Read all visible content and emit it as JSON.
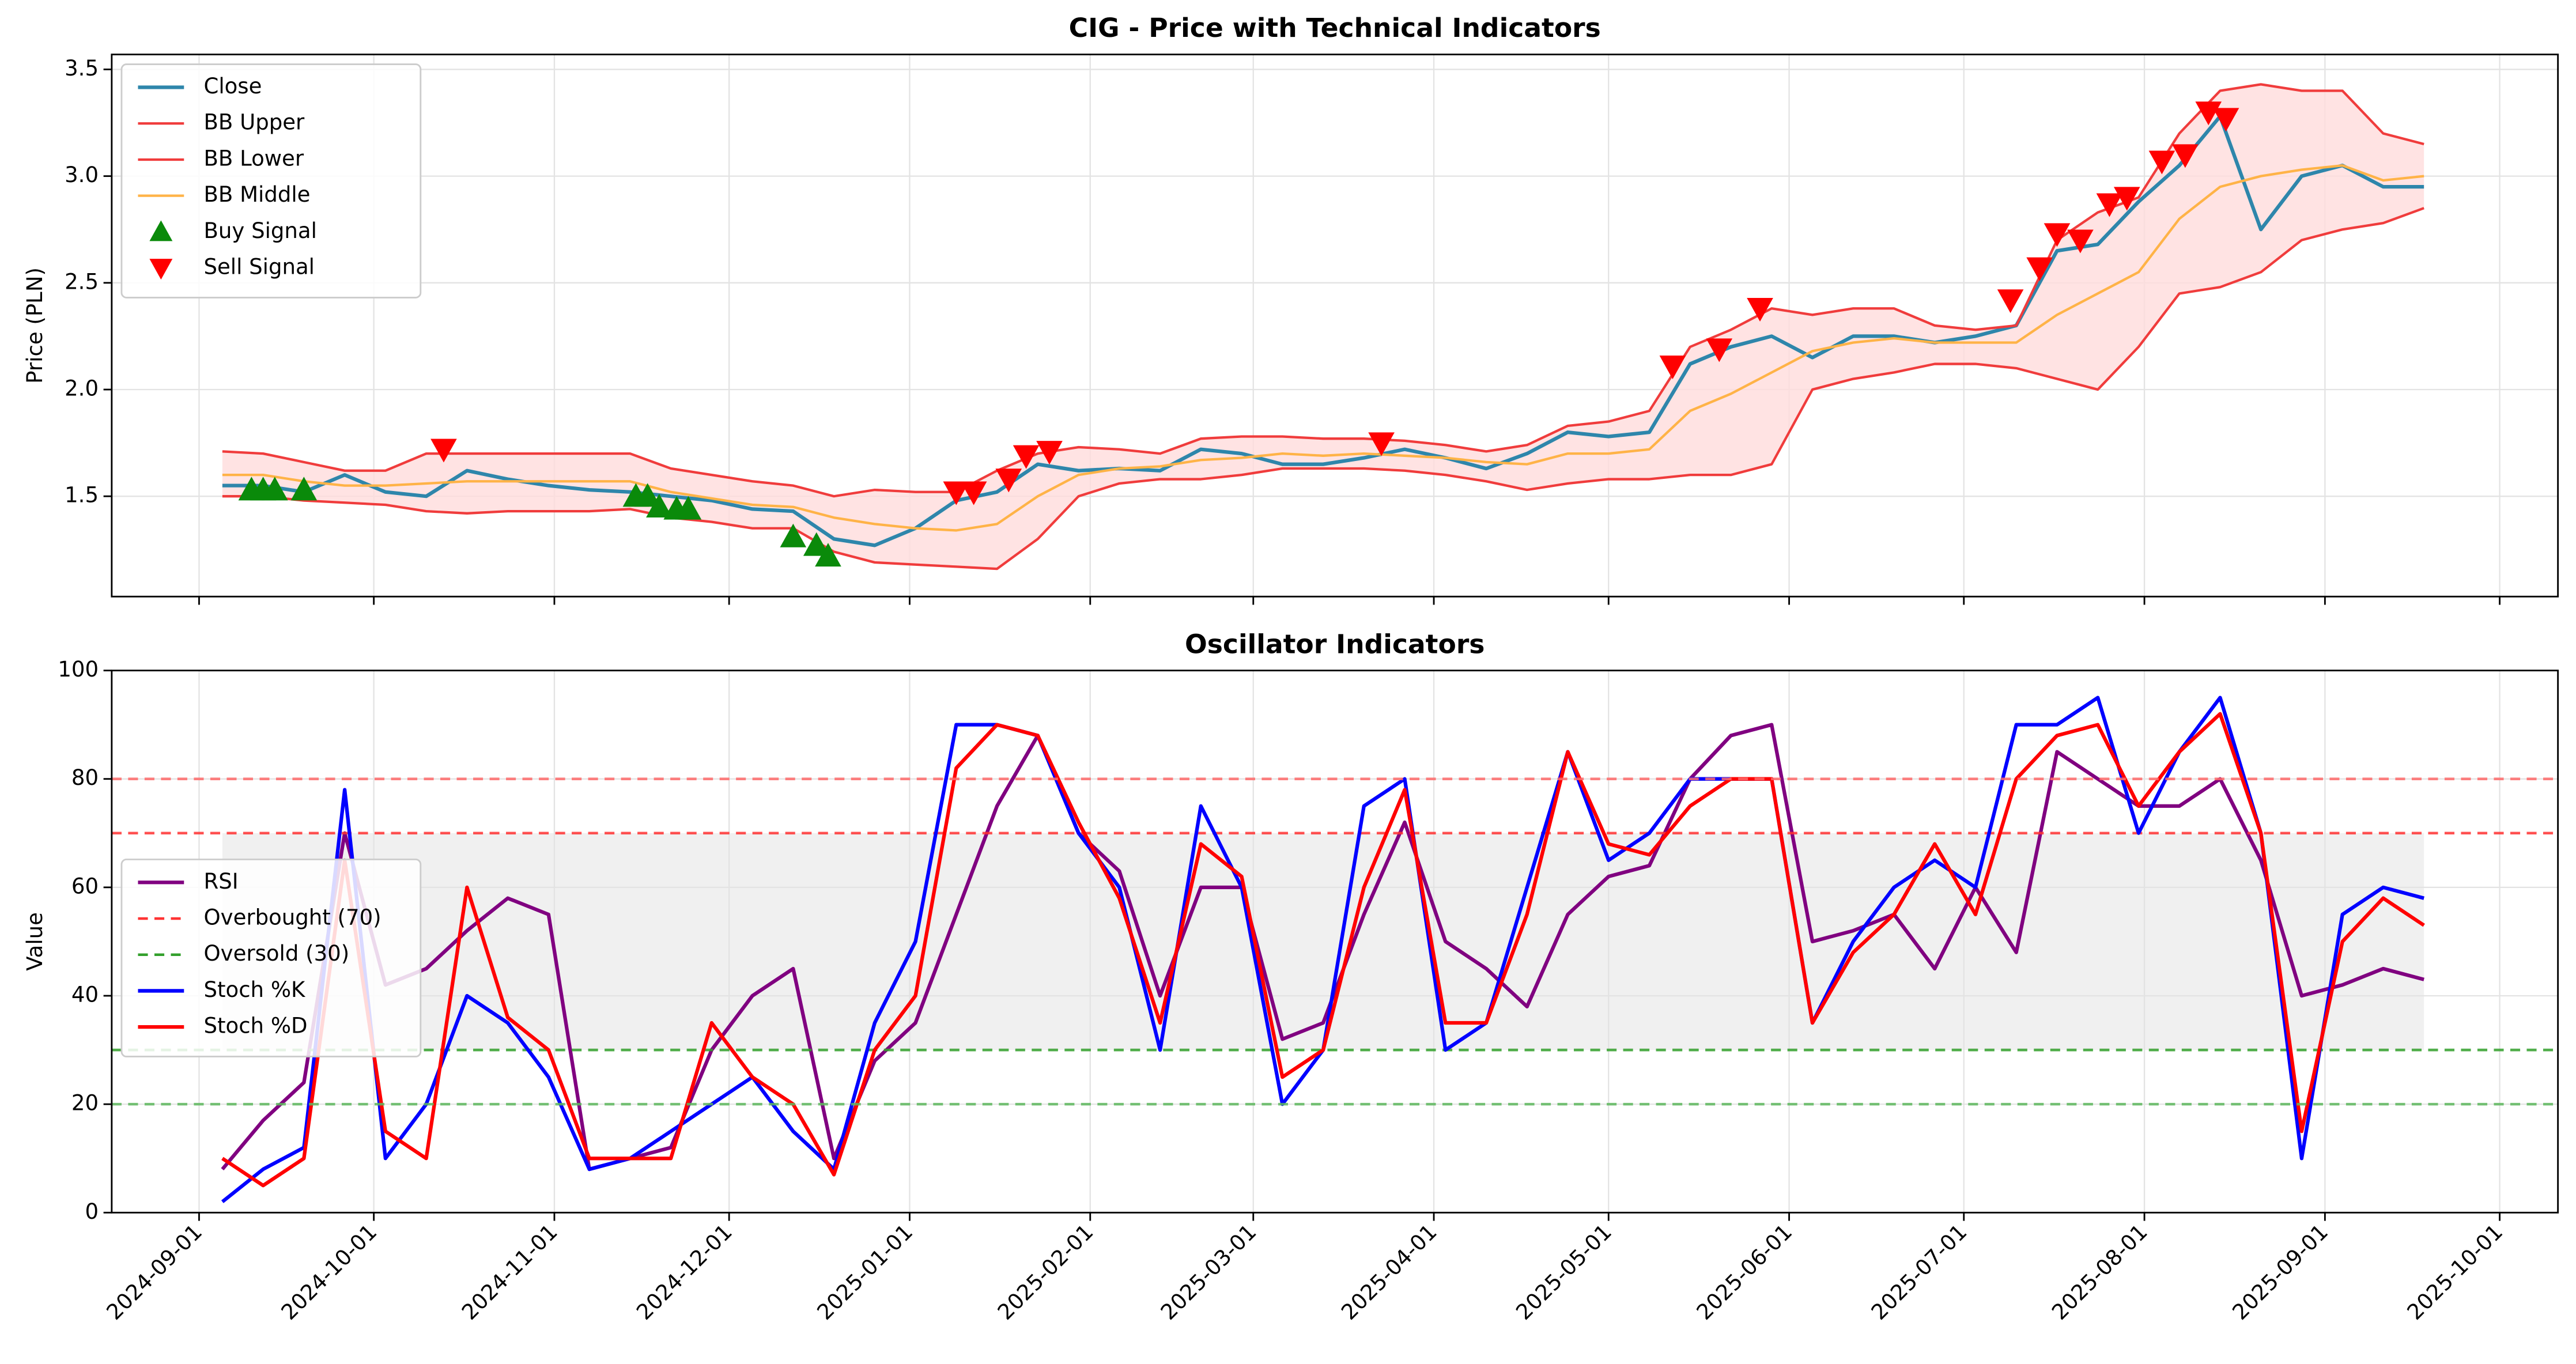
{
  "chart_data": [
    {
      "type": "line",
      "title": "CIG - Price with Technical Indicators",
      "ylabel": "Price (PLN)",
      "x": [
        "2024-09-05",
        "2024-09-12",
        "2024-09-19",
        "2024-09-26",
        "2024-10-03",
        "2024-10-10",
        "2024-10-17",
        "2024-10-24",
        "2024-10-31",
        "2024-11-07",
        "2024-11-14",
        "2024-11-21",
        "2024-11-28",
        "2024-12-05",
        "2024-12-12",
        "2024-12-19",
        "2024-12-26",
        "2025-01-02",
        "2025-01-09",
        "2025-01-16",
        "2025-01-23",
        "2025-01-30",
        "2025-02-06",
        "2025-02-13",
        "2025-02-20",
        "2025-02-27",
        "2025-03-06",
        "2025-03-13",
        "2025-03-20",
        "2025-03-27",
        "2025-04-03",
        "2025-04-10",
        "2025-04-17",
        "2025-04-24",
        "2025-05-01",
        "2025-05-08",
        "2025-05-15",
        "2025-05-22",
        "2025-05-29",
        "2025-06-05",
        "2025-06-12",
        "2025-06-19",
        "2025-06-26",
        "2025-07-03",
        "2025-07-10",
        "2025-07-17",
        "2025-07-24",
        "2025-07-31",
        "2025-08-07",
        "2025-08-14",
        "2025-08-21",
        "2025-08-28",
        "2025-09-04",
        "2025-09-11",
        "2025-09-18"
      ],
      "series": [
        {
          "name": "Close",
          "kind": "line",
          "color": "#2e86ab",
          "width": 2.2,
          "values": [
            1.55,
            1.55,
            1.52,
            1.6,
            1.52,
            1.5,
            1.62,
            1.58,
            1.55,
            1.53,
            1.52,
            1.5,
            1.48,
            1.44,
            1.43,
            1.3,
            1.27,
            1.35,
            1.48,
            1.52,
            1.65,
            1.62,
            1.63,
            1.62,
            1.72,
            1.7,
            1.65,
            1.65,
            1.68,
            1.72,
            1.68,
            1.63,
            1.7,
            1.8,
            1.78,
            1.8,
            2.12,
            2.2,
            2.25,
            2.15,
            2.25,
            2.25,
            2.22,
            2.25,
            2.3,
            2.65,
            2.68,
            2.88,
            3.05,
            3.28,
            2.75,
            3.0,
            3.05,
            2.95,
            2.95
          ]
        },
        {
          "name": "BB Upper",
          "kind": "line",
          "color": "#f03c3c",
          "width": 1.5,
          "values": [
            1.71,
            1.7,
            1.66,
            1.62,
            1.62,
            1.7,
            1.7,
            1.7,
            1.7,
            1.7,
            1.7,
            1.63,
            1.6,
            1.57,
            1.55,
            1.5,
            1.53,
            1.52,
            1.52,
            1.62,
            1.7,
            1.73,
            1.72,
            1.7,
            1.77,
            1.78,
            1.78,
            1.77,
            1.77,
            1.76,
            1.74,
            1.71,
            1.74,
            1.83,
            1.85,
            1.9,
            2.2,
            2.28,
            2.38,
            2.35,
            2.38,
            2.38,
            2.3,
            2.28,
            2.3,
            2.7,
            2.83,
            2.9,
            3.2,
            3.4,
            3.43,
            3.4,
            3.4,
            3.2,
            3.15
          ]
        },
        {
          "name": "BB Lower",
          "kind": "line",
          "color": "#f03c3c",
          "width": 1.5,
          "values": [
            1.5,
            1.5,
            1.48,
            1.47,
            1.46,
            1.43,
            1.42,
            1.43,
            1.43,
            1.43,
            1.44,
            1.4,
            1.38,
            1.35,
            1.35,
            1.24,
            1.19,
            1.18,
            1.17,
            1.16,
            1.3,
            1.5,
            1.56,
            1.58,
            1.58,
            1.6,
            1.63,
            1.63,
            1.63,
            1.62,
            1.6,
            1.57,
            1.53,
            1.56,
            1.58,
            1.58,
            1.6,
            1.6,
            1.65,
            2.0,
            2.05,
            2.08,
            2.12,
            2.12,
            2.1,
            2.05,
            2.0,
            2.2,
            2.45,
            2.48,
            2.55,
            2.7,
            2.75,
            2.78,
            2.85
          ]
        },
        {
          "name": "BB Middle",
          "kind": "line",
          "color": "#ffb347",
          "width": 1.5,
          "values": [
            1.6,
            1.6,
            1.57,
            1.55,
            1.55,
            1.56,
            1.57,
            1.57,
            1.57,
            1.57,
            1.57,
            1.52,
            1.49,
            1.46,
            1.45,
            1.4,
            1.37,
            1.35,
            1.34,
            1.37,
            1.5,
            1.6,
            1.63,
            1.64,
            1.67,
            1.68,
            1.7,
            1.69,
            1.7,
            1.69,
            1.68,
            1.66,
            1.65,
            1.7,
            1.7,
            1.72,
            1.9,
            1.98,
            2.08,
            2.18,
            2.22,
            2.24,
            2.22,
            2.22,
            2.22,
            2.35,
            2.45,
            2.55,
            2.8,
            2.95,
            3.0,
            3.03,
            3.05,
            2.98,
            3.0
          ]
        },
        {
          "name": "Buy Signal",
          "kind": "scatter",
          "marker": "up",
          "color": "#0a8a0a",
          "x": [
            "2024-09-10",
            "2024-09-12",
            "2024-09-14",
            "2024-09-19",
            "2024-11-15",
            "2024-11-17",
            "2024-11-19",
            "2024-11-22",
            "2024-11-24",
            "2024-12-12",
            "2024-12-16",
            "2024-12-18"
          ],
          "values": [
            1.53,
            1.53,
            1.53,
            1.53,
            1.5,
            1.5,
            1.45,
            1.44,
            1.44,
            1.31,
            1.27,
            1.22
          ]
        },
        {
          "name": "Sell Signal",
          "kind": "scatter",
          "marker": "down",
          "color": "#ff0000",
          "x": [
            "2024-10-13",
            "2025-01-09",
            "2025-01-12",
            "2025-01-18",
            "2025-01-21",
            "2025-01-25",
            "2025-03-23",
            "2025-05-12",
            "2025-05-20",
            "2025-05-27",
            "2025-07-09",
            "2025-07-14",
            "2025-07-17",
            "2025-07-21",
            "2025-07-26",
            "2025-07-29",
            "2025-08-04",
            "2025-08-08",
            "2025-08-12",
            "2025-08-15"
          ],
          "values": [
            1.72,
            1.52,
            1.52,
            1.58,
            1.69,
            1.71,
            1.75,
            2.11,
            2.19,
            2.38,
            2.42,
            2.57,
            2.73,
            2.7,
            2.87,
            2.9,
            3.07,
            3.1,
            3.3,
            3.27
          ]
        }
      ],
      "fill_between": {
        "series": [
          1,
          2
        ],
        "color": "#ffdcdc"
      },
      "ylim": [
        1.03,
        3.57
      ],
      "yticks": [
        1.5,
        {
          "value": 2,
          "label": "2.0"
        },
        2.5,
        {
          "value": 3,
          "label": "3.0"
        },
        3.5
      ],
      "grid": true,
      "legend": "upper left"
    },
    {
      "type": "line",
      "title": "Oscillator Indicators",
      "ylabel": "Value",
      "x": [
        "2024-09-05",
        "2024-09-12",
        "2024-09-19",
        "2024-09-26",
        "2024-10-03",
        "2024-10-10",
        "2024-10-17",
        "2024-10-24",
        "2024-10-31",
        "2024-11-07",
        "2024-11-14",
        "2024-11-21",
        "2024-11-28",
        "2024-12-05",
        "2024-12-12",
        "2024-12-19",
        "2024-12-26",
        "2025-01-02",
        "2025-01-09",
        "2025-01-16",
        "2025-01-23",
        "2025-01-30",
        "2025-02-06",
        "2025-02-13",
        "2025-02-20",
        "2025-02-27",
        "2025-03-06",
        "2025-03-13",
        "2025-03-20",
        "2025-03-27",
        "2025-04-03",
        "2025-04-10",
        "2025-04-17",
        "2025-04-24",
        "2025-05-01",
        "2025-05-08",
        "2025-05-15",
        "2025-05-22",
        "2025-05-29",
        "2025-06-05",
        "2025-06-12",
        "2025-06-19",
        "2025-06-26",
        "2025-07-03",
        "2025-07-10",
        "2025-07-17",
        "2025-07-24",
        "2025-07-31",
        "2025-08-07",
        "2025-08-14",
        "2025-08-21",
        "2025-08-28",
        "2025-09-04",
        "2025-09-11",
        "2025-09-18"
      ],
      "series": [
        {
          "name": "RSI",
          "kind": "line",
          "color": "#800080",
          "width": 2.2,
          "values": [
            8,
            17,
            24,
            70,
            42,
            45,
            52,
            58,
            55,
            8,
            10,
            12,
            30,
            40,
            45,
            10,
            28,
            35,
            55,
            75,
            88,
            70,
            63,
            40,
            60,
            60,
            32,
            35,
            55,
            72,
            50,
            45,
            38,
            55,
            62,
            64,
            80,
            88,
            90,
            50,
            52,
            55,
            45,
            60,
            48,
            85,
            80,
            75,
            75,
            80,
            65,
            40,
            42,
            45,
            43
          ]
        },
        {
          "name": "Overbought (70)",
          "kind": "hline",
          "value": 70,
          "color": "#ff3333",
          "dash": true
        },
        {
          "name": "Oversold (30)",
          "kind": "hline",
          "value": 30,
          "color": "#33a02c",
          "dash": true
        },
        {
          "name": "Stoch %K",
          "kind": "line",
          "color": "#0000ff",
          "width": 2.2,
          "values": [
            2,
            8,
            12,
            78,
            10,
            20,
            40,
            35,
            25,
            8,
            10,
            15,
            20,
            25,
            15,
            8,
            35,
            50,
            90,
            90,
            88,
            70,
            60,
            30,
            75,
            60,
            20,
            30,
            75,
            80,
            30,
            35,
            60,
            85,
            65,
            70,
            80,
            80,
            80,
            35,
            50,
            60,
            65,
            60,
            90,
            90,
            95,
            70,
            85,
            95,
            70,
            10,
            55,
            60,
            58
          ]
        },
        {
          "name": "Stoch %D",
          "kind": "line",
          "color": "#ff0000",
          "width": 2.2,
          "values": [
            10,
            5,
            10,
            65,
            15,
            10,
            60,
            36,
            30,
            10,
            10,
            10,
            35,
            25,
            20,
            7,
            30,
            40,
            82,
            90,
            88,
            72,
            58,
            35,
            68,
            62,
            25,
            30,
            60,
            78,
            35,
            35,
            55,
            85,
            68,
            66,
            75,
            80,
            80,
            35,
            48,
            55,
            68,
            55,
            80,
            88,
            90,
            75,
            85,
            92,
            70,
            15,
            50,
            58,
            53
          ]
        },
        {
          "kind": "hline",
          "value": 80,
          "color": "#ff6b6b",
          "dash": true
        },
        {
          "kind": "hline",
          "value": 20,
          "color": "#5fb85f",
          "dash": true
        }
      ],
      "band": {
        "range": [
          30,
          70
        ],
        "color": "#f0f0f0"
      },
      "xlim": [
        "2024-08-17",
        "2025-10-11"
      ],
      "xticks": [
        "2024-09-01",
        "2024-10-01",
        "2024-11-01",
        "2024-12-01",
        "2025-01-01",
        "2025-02-01",
        "2025-03-01",
        "2025-04-01",
        "2025-05-01",
        "2025-06-01",
        "2025-07-01",
        "2025-08-01",
        "2025-09-01",
        "2025-10-01"
      ],
      "ylim": [
        0,
        100
      ],
      "yticks": [
        0,
        20,
        40,
        60,
        80,
        100
      ],
      "grid": true,
      "legend": "center left"
    }
  ]
}
